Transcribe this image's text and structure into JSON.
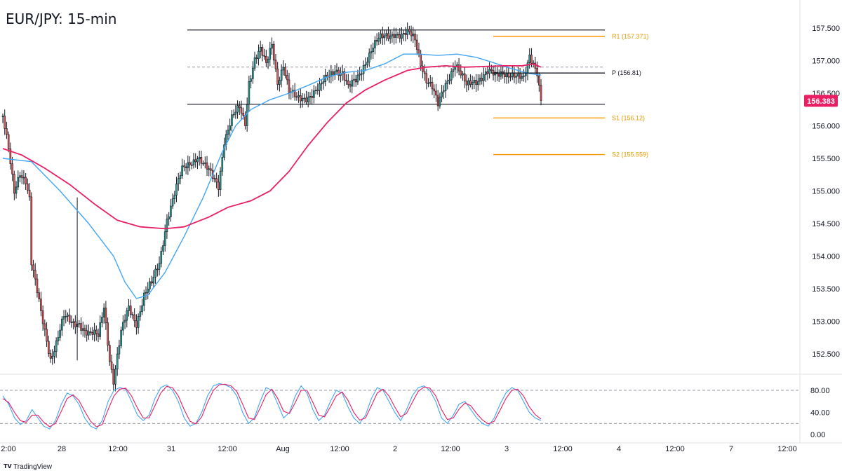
{
  "chart_title": "EUR/JPY: 15-min",
  "brand": {
    "logo": "TV",
    "text": "TradingView"
  },
  "current_price": {
    "label": "156.383",
    "value": 156.383,
    "color": "#e91e63"
  },
  "chart_data": [
    {
      "type": "candlestick",
      "title": "EUR/JPY: 15-min",
      "ylim": [
        152.0,
        157.75
      ],
      "y_ticks": [
        152.5,
        153.0,
        153.5,
        154.0,
        154.5,
        155.0,
        155.5,
        156.0,
        156.5,
        157.0,
        157.5
      ],
      "y_tick_labels": [
        "152.500",
        "153.000",
        "153.500",
        "154.000",
        "154.500",
        "155.000",
        "155.500",
        "156.000",
        "156.500",
        "157.000",
        "157.500"
      ],
      "x_tick_labels": [
        "2:00",
        "28",
        "12:00",
        "31",
        "12:00",
        "Aug",
        "12:00",
        "2",
        "12:00",
        "3",
        "12:00",
        "4",
        "12:00",
        "7",
        "12:00"
      ],
      "colors": {
        "up": "#26a69a",
        "down": "#ef5350",
        "body": "#131722",
        "sma_fast": "#42a5f5",
        "sma_slow": "#e91e63",
        "pivot_line": "#131722",
        "level_line": "#ff9800"
      },
      "price_path": [
        [
          0,
          156.15
        ],
        [
          3,
          155.6
        ],
        [
          6,
          154.95
        ],
        [
          9,
          155.3
        ],
        [
          12,
          155.2
        ],
        [
          14,
          154.9
        ],
        [
          15,
          153.9
        ],
        [
          20,
          153.1
        ],
        [
          25,
          152.45
        ],
        [
          28,
          152.7
        ],
        [
          32,
          153.05
        ],
        [
          36,
          152.95
        ],
        [
          40,
          153.0
        ],
        [
          45,
          152.8
        ],
        [
          50,
          152.75
        ],
        [
          53,
          153.25
        ],
        [
          56,
          152.45
        ],
        [
          58,
          152.1
        ],
        [
          62,
          152.8
        ],
        [
          66,
          153.2
        ],
        [
          70,
          153.0
        ],
        [
          74,
          153.4
        ],
        [
          78,
          153.55
        ],
        [
          82,
          153.9
        ],
        [
          86,
          154.6
        ],
        [
          90,
          154.95
        ],
        [
          94,
          155.3
        ],
        [
          98,
          155.45
        ],
        [
          102,
          155.55
        ],
        [
          106,
          155.35
        ],
        [
          110,
          155.2
        ],
        [
          113,
          155.1
        ],
        [
          116,
          155.8
        ],
        [
          120,
          156.1
        ],
        [
          124,
          156.25
        ],
        [
          127,
          156.05
        ],
        [
          129,
          156.7
        ],
        [
          132,
          157.05
        ],
        [
          135,
          157.15
        ],
        [
          138,
          156.9
        ],
        [
          141,
          157.25
        ],
        [
          144,
          156.7
        ],
        [
          147,
          156.95
        ],
        [
          150,
          156.5
        ],
        [
          154,
          156.4
        ],
        [
          158,
          156.45
        ],
        [
          162,
          156.5
        ],
        [
          166,
          156.55
        ],
        [
          170,
          156.75
        ],
        [
          174,
          156.9
        ],
        [
          178,
          156.8
        ],
        [
          181,
          156.55
        ],
        [
          185,
          156.7
        ],
        [
          189,
          156.95
        ],
        [
          193,
          157.15
        ],
        [
          197,
          157.3
        ],
        [
          201,
          157.4
        ],
        [
          205,
          157.45
        ],
        [
          209,
          157.35
        ],
        [
          213,
          157.4
        ],
        [
          216,
          157.35
        ],
        [
          219,
          157.0
        ],
        [
          222,
          156.7
        ],
        [
          225,
          156.55
        ],
        [
          228,
          156.3
        ],
        [
          231,
          156.6
        ],
        [
          234,
          156.8
        ],
        [
          237,
          156.95
        ],
        [
          240,
          156.75
        ],
        [
          243,
          156.6
        ],
        [
          246,
          156.7
        ],
        [
          250,
          156.75
        ],
        [
          254,
          156.8
        ],
        [
          258,
          156.75
        ],
        [
          262,
          156.85
        ],
        [
          266,
          156.8
        ],
        [
          270,
          156.7
        ],
        [
          273,
          156.7
        ],
        [
          276,
          157.1
        ],
        [
          278,
          157.0
        ],
        [
          280,
          156.85
        ],
        [
          282,
          156.383
        ]
      ],
      "series": [
        {
          "name": "",
          "role": "sma_fast",
          "points": [
            [
              0,
              155.5
            ],
            [
              15,
              155.45
            ],
            [
              30,
              155.0
            ],
            [
              45,
              154.5
            ],
            [
              58,
              154.0
            ],
            [
              64,
              153.6
            ],
            [
              70,
              153.35
            ],
            [
              76,
              153.4
            ],
            [
              85,
              153.75
            ],
            [
              95,
              154.3
            ],
            [
              105,
              154.9
            ],
            [
              115,
              155.6
            ],
            [
              122,
              156.0
            ],
            [
              130,
              156.25
            ],
            [
              140,
              156.4
            ],
            [
              150,
              156.5
            ],
            [
              160,
              156.62
            ],
            [
              170,
              156.75
            ],
            [
              180,
              156.82
            ],
            [
              190,
              156.85
            ],
            [
              200,
              156.95
            ],
            [
              210,
              157.1
            ],
            [
              218,
              157.1
            ],
            [
              228,
              157.08
            ],
            [
              238,
              157.1
            ],
            [
              248,
              157.05
            ],
            [
              256,
              156.98
            ],
            [
              264,
              156.9
            ],
            [
              270,
              156.85
            ],
            [
              276,
              156.8
            ],
            [
              282,
              156.78
            ]
          ]
        },
        {
          "name": "",
          "role": "sma_slow",
          "points": [
            [
              0,
              155.65
            ],
            [
              10,
              155.55
            ],
            [
              22,
              155.35
            ],
            [
              35,
              155.1
            ],
            [
              48,
              154.8
            ],
            [
              60,
              154.55
            ],
            [
              72,
              154.45
            ],
            [
              85,
              154.42
            ],
            [
              95,
              154.45
            ],
            [
              108,
              154.6
            ],
            [
              118,
              154.75
            ],
            [
              130,
              154.85
            ],
            [
              140,
              155.0
            ],
            [
              150,
              155.3
            ],
            [
              160,
              155.7
            ],
            [
              170,
              156.05
            ],
            [
              180,
              156.35
            ],
            [
              190,
              156.55
            ],
            [
              200,
              156.7
            ],
            [
              212,
              156.85
            ],
            [
              222,
              156.9
            ],
            [
              232,
              156.92
            ],
            [
              242,
              156.9
            ],
            [
              252,
              156.91
            ],
            [
              262,
              156.92
            ],
            [
              272,
              156.92
            ],
            [
              278,
              156.95
            ],
            [
              282,
              156.9
            ]
          ]
        }
      ],
      "levels": [
        {
          "name": "R1",
          "label": "R1 (157.371)",
          "value": 157.371,
          "kind": "resistance"
        },
        {
          "name": "P",
          "label": "P (156.81)",
          "value": 156.81,
          "kind": "pivot"
        },
        {
          "name": "S1",
          "label": "S1 (156.12)",
          "value": 156.12,
          "kind": "support"
        },
        {
          "name": "S2",
          "label": "S2 (155.559)",
          "value": 155.559,
          "kind": "support"
        }
      ],
      "range_lines": [
        {
          "role": "range-top",
          "value": 157.47
        },
        {
          "role": "range-bottom",
          "value": 156.33
        },
        {
          "role": "range-mid",
          "value": 156.9,
          "dashed": true
        }
      ]
    },
    {
      "type": "line",
      "title": "",
      "ylim": [
        -5,
        105
      ],
      "y_ticks": [
        80,
        40,
        0
      ],
      "y_tick_labels": [
        "80.00",
        "40.00",
        "0.00"
      ],
      "dashed_levels": [
        80,
        20
      ],
      "series": [
        {
          "name": "",
          "role": "k",
          "color": "#42a5f5",
          "values": [
            70,
            55,
            30,
            18,
            25,
            45,
            30,
            15,
            10,
            25,
            55,
            75,
            70,
            55,
            30,
            15,
            10,
            25,
            60,
            80,
            85,
            82,
            60,
            35,
            25,
            35,
            65,
            85,
            90,
            80,
            60,
            30,
            15,
            20,
            40,
            70,
            88,
            92,
            90,
            85,
            70,
            40,
            20,
            30,
            60,
            85,
            80,
            55,
            30,
            40,
            70,
            88,
            75,
            45,
            25,
            35,
            60,
            80,
            75,
            50,
            30,
            20,
            35,
            65,
            85,
            80,
            60,
            40,
            25,
            45,
            70,
            85,
            88,
            80,
            60,
            30,
            20,
            35,
            55,
            60,
            45,
            30,
            20,
            15,
            30,
            55,
            75,
            85,
            80,
            60,
            40,
            30,
            25
          ]
        },
        {
          "name": "",
          "role": "d",
          "color": "#e91e63",
          "values": [
            65,
            58,
            40,
            25,
            22,
            35,
            35,
            22,
            14,
            20,
            42,
            65,
            72,
            62,
            42,
            24,
            14,
            18,
            45,
            70,
            82,
            84,
            70,
            48,
            30,
            30,
            52,
            75,
            87,
            85,
            70,
            45,
            24,
            19,
            32,
            58,
            80,
            90,
            91,
            88,
            78,
            55,
            30,
            27,
            48,
            72,
            82,
            65,
            42,
            38,
            58,
            80,
            80,
            58,
            35,
            32,
            50,
            70,
            77,
            62,
            40,
            26,
            30,
            52,
            75,
            82,
            70,
            50,
            32,
            38,
            58,
            78,
            86,
            84,
            70,
            45,
            27,
            30,
            46,
            57,
            52,
            38,
            26,
            19,
            24,
            44,
            65,
            80,
            82,
            70,
            50,
            36,
            28
          ]
        }
      ]
    }
  ]
}
